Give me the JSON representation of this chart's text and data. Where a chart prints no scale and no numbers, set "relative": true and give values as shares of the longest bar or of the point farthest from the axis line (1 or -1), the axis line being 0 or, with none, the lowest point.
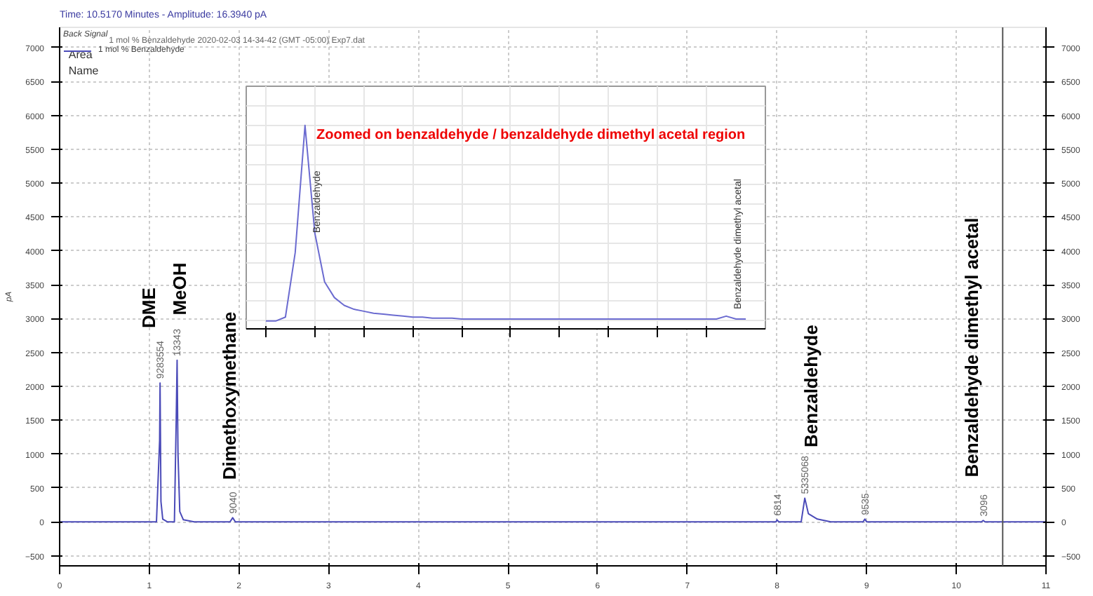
{
  "chart_data": [
    {
      "type": "line",
      "title": "Time: 10.5170 Minutes - Amplitude: 16.3940 pA",
      "ylabel": "pA",
      "legend_title": "Back Signal",
      "legend": "top left",
      "xlim": [
        0,
        11
      ],
      "xticks": [
        0,
        1,
        2,
        3,
        4,
        5,
        6,
        7,
        8,
        9,
        10,
        11
      ],
      "ylim": [
        -650,
        7300
      ],
      "yticks": [
        -500,
        0,
        500,
        1000,
        1500,
        2000,
        2500,
        3000,
        3500,
        4000,
        4500,
        5000,
        5500,
        6000,
        6500,
        7000
      ],
      "y2lim": [
        -650,
        7300
      ],
      "y2ticks": [
        -500,
        0,
        500,
        1000,
        1500,
        2000,
        2500,
        3000,
        3500,
        4000,
        4500,
        5000,
        5500,
        6000,
        6500,
        7000
      ],
      "grid": true,
      "ref_lines": [
        {
          "axis": "x",
          "value": 10.517,
          "color": "#555555"
        }
      ],
      "series": [
        {
          "name": "1 mol % Benzaldehyde",
          "color": "#4a4ab8",
          "x": [
            0,
            1.08,
            1.115,
            1.12,
            1.13,
            1.15,
            1.2,
            1.28,
            1.3,
            1.31,
            1.32,
            1.34,
            1.38,
            1.5,
            1.9,
            1.93,
            1.96,
            7.99,
            8.0,
            8.02,
            8.27,
            8.31,
            8.35,
            8.45,
            8.6,
            8.96,
            8.98,
            9.0,
            10.28,
            10.3,
            10.32,
            11
          ],
          "values": [
            0,
            0,
            1200,
            2050,
            300,
            40,
            0,
            0,
            1500,
            2385,
            1000,
            150,
            30,
            0,
            0,
            60,
            0,
            0,
            30,
            0,
            0,
            350,
            120,
            40,
            0,
            0,
            40,
            0,
            0,
            20,
            0,
            0
          ]
        }
      ],
      "annotations": [
        {
          "text": "9283554",
          "x": 1.12,
          "y": 2050
        },
        {
          "text": "13343",
          "x": 1.31,
          "y": 2385
        },
        {
          "text": "9040",
          "x": 1.93,
          "y": 60
        },
        {
          "text": "6814",
          "x": 8.0,
          "y": 30
        },
        {
          "text": "5335068",
          "x": 8.31,
          "y": 350
        },
        {
          "text": "9535",
          "x": 8.98,
          "y": 40
        },
        {
          "text": "3096",
          "x": 10.3,
          "y": 20
        },
        "1 mol % Benzaldehyde 2020-02-03 14-34-42 (GMT -05:00) Exp7.dat",
        "Area",
        "Name",
        "DME",
        "MeOH",
        "Dimethoxymethane",
        "Benzaldehyde",
        "Benzaldehyde dimethyl acetal"
      ]
    },
    {
      "type": "line",
      "relative": true,
      "tick_labels": false,
      "grid": true,
      "categories": [
        null,
        null,
        null,
        null,
        null,
        null,
        null,
        null,
        null,
        null,
        null,
        null,
        null,
        null,
        null,
        null,
        null,
        null,
        null,
        null,
        null,
        null,
        null,
        null,
        null,
        null,
        null,
        null,
        null,
        null,
        null,
        null,
        null,
        null,
        null,
        null,
        null,
        null,
        null,
        null,
        null,
        null,
        null,
        null,
        null,
        null,
        null,
        null,
        null,
        null
      ],
      "series": [
        {
          "color": "#6b6bd0",
          "values": [
            0,
            0,
            0.02,
            0.35,
            1.0,
            0.45,
            0.2,
            0.12,
            0.08,
            0.06,
            0.05,
            0.04,
            0.035,
            0.03,
            0.025,
            0.02,
            0.02,
            0.015,
            0.015,
            0.015,
            0.01,
            0.01,
            0.01,
            0.01,
            0.01,
            0.01,
            0.01,
            0.01,
            0.01,
            0.01,
            0.01,
            0.01,
            0.01,
            0.01,
            0.01,
            0.01,
            0.01,
            0.01,
            0.01,
            0.01,
            0.01,
            0.01,
            0.01,
            0.01,
            0.01,
            0.01,
            0.01,
            0.025,
            0.01,
            0.01
          ]
        }
      ],
      "annotations": [
        "Benzaldehyde",
        "Benzaldehyde dimethyl acetal",
        "Zoomed on benzaldehyde / benzaldehyde dimethyl acetal region"
      ]
    }
  ]
}
